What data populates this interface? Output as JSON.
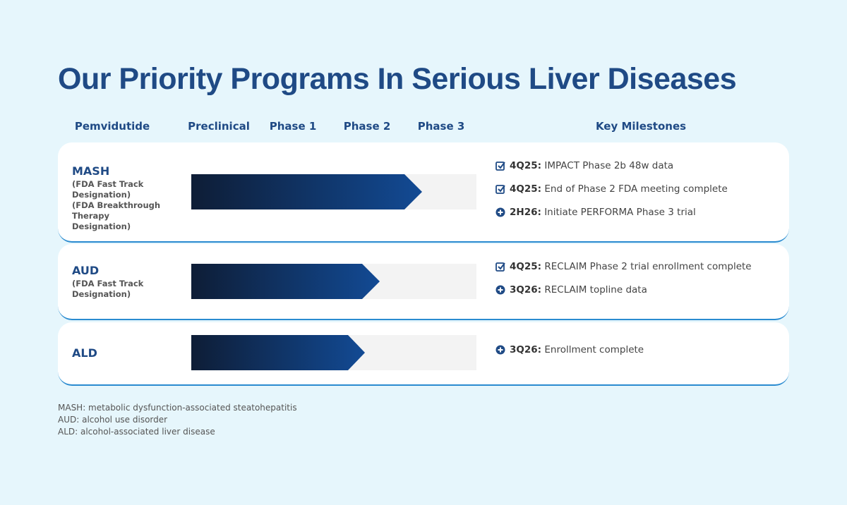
{
  "title": "Our Priority Programs In Serious Liver Diseases",
  "header": {
    "drug": "Pemvidutide",
    "stages": [
      "Preclinical",
      "Phase 1",
      "Phase 2",
      "Phase 3"
    ],
    "milestones": "Key Milestones"
  },
  "programs": [
    {
      "name": "MASH",
      "notes": [
        "(FDA Fast Track Designation)",
        "(FDA Breakthrough Therapy Designation)"
      ],
      "milestones": [
        {
          "date": "4Q25:",
          "text": "IMPACT Phase 2b 48w data"
        },
        {
          "date": "4Q25:",
          "text": "End of Phase 2 FDA meeting complete"
        },
        {
          "date": "2H26:",
          "text": "Initiate PERFORMA Phase 3 trial"
        }
      ]
    },
    {
      "name": "AUD",
      "notes": [
        "(FDA Fast Track Designation)"
      ],
      "milestones": [
        {
          "date": "4Q25:",
          "text": "RECLAIM Phase 2 trial enrollment complete"
        },
        {
          "date": "3Q26:",
          "text": "RECLAIM topline data"
        }
      ]
    },
    {
      "name": "ALD",
      "notes": [],
      "milestones": [
        {
          "date": "3Q26:",
          "text": "Enrollment complete"
        }
      ]
    }
  ],
  "footnotes": [
    "MASH: metabolic dysfunction-associated steatohepatitis",
    "AUD: alcohol use disorder",
    "ALD: alcohol-associated liver disease"
  ]
}
